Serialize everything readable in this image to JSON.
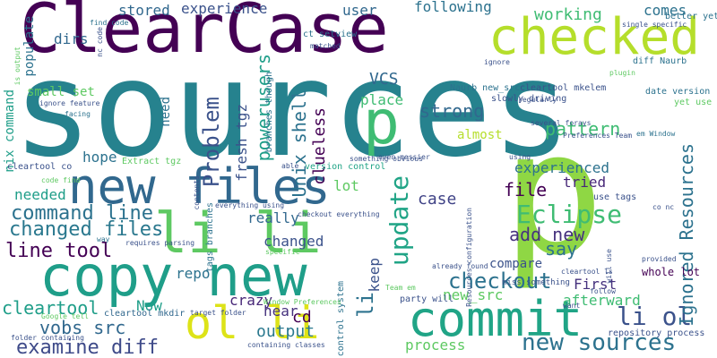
{
  "cloud": {
    "words": {
      "sources": "sources",
      "clearcase": "ClearCase",
      "p_big": "p",
      "commit": "commit",
      "copy_new": "copy new",
      "li_li": "li li",
      "new_files": "new files",
      "checked": "checked",
      "ol_li": "ol li",
      "p_mid": "p",
      "new_sources": "new sources",
      "eclipse": "Eclipse",
      "checkout": "checkout",
      "li_ol": "li ol",
      "update": "update",
      "ignored_resources": "Ignored Resources",
      "examine_diff": "examine diff",
      "changed_files": "changed files",
      "command_line": "command line",
      "line_tool": "line tool",
      "vobs_src": "vobs src",
      "cleartool": "cleartool",
      "output": "output",
      "problem": "Problem",
      "powerusers": "powerusers",
      "unix_shell": "Unix shell",
      "fresh_tgz": "fresh tgz",
      "clueless": "clueless",
      "strong": "strong",
      "pattern": "pattern",
      "experienced": "experienced",
      "add_new": "add new",
      "say": "say",
      "file": "file",
      "tried": "tried",
      "case": "case",
      "compare": "compare",
      "afterward": "afterward",
      "first": "First",
      "new_src": "new_src",
      "keep": "keep",
      "li_vert": "li",
      "cd": "cd",
      "hear": "hear",
      "crazy": "crazy",
      "now": "Now",
      "repo": "repo",
      "changed": "changed",
      "really": "really",
      "lot": "lot",
      "almost": "almost",
      "place": "place",
      "vcs": "VCS",
      "need": "need",
      "hope": "hope",
      "needed": "needed",
      "nix_command": "nix command",
      "small_set": "small set",
      "dirs": "dirs",
      "populate": "populate",
      "stored": "stored",
      "experience": "experience",
      "user": "user",
      "following": "following",
      "working": "working",
      "comes": "comes",
      "process": "process",
      "ct_setview": "ct setview",
      "extract_tgz": "Extract tgz",
      "version_control": "version control",
      "date_version": "date version",
      "naurb_new_src": "Naurb new_src",
      "cleartool_mkelem": "cleartool mkelem",
      "slowly_driving": "slowly driving",
      "diff_naurb": "diff Naurb",
      "whole_lot": "whole lot",
      "cleartool_mkdir": "cleartool mkdir",
      "repository_process": "repository process",
      "use_tags": "use tags",
      "control_system": "control system",
      "branches_though": "branches though",
      "better_yet": "better yet",
      "yet_use": "yet use",
      "cleartool_co": "cleartool co",
      "tags_branches": "tags branches",
      "missing_something": "miss something",
      "party_will": "party will",
      "find_code": "find code",
      "nc_code": "nc code",
      "is_output": "is output",
      "ignore_feature": "ignore feature",
      "single_specific": "single specific",
      "ignore": "ignore",
      "regularly": "regularly",
      "plugin": "plugin",
      "facing": "facing",
      "several_forays": "several forays",
      "preferences_team": "Preferences Team",
      "em_window": "em Window",
      "even_messier": "even messier",
      "something_obvious": "something obvious",
      "using": "using",
      "able": "able",
      "code_find": "code find",
      "everything_using": "everything using",
      "checkout_everything": "checkout everything",
      "requires_parsing": "requires parsing",
      "specific": "specific",
      "contents": "contents",
      "matched": "matched",
      "way": "way",
      "resources_configuration": "Resources configuration",
      "already_found": "already found",
      "cleartool_ls": "cleartool ls",
      "co_nc": "co nc",
      "will_use": "will use",
      "provided": "provided",
      "follow": "follow",
      "want": "want",
      "team_em": "Team em",
      "target_folder": "target folder",
      "window_preferences": "Window Preferences",
      "google_tell": "Google tell",
      "folder_containing": "folder containing",
      "containing_classes": "containing classes"
    }
  }
}
